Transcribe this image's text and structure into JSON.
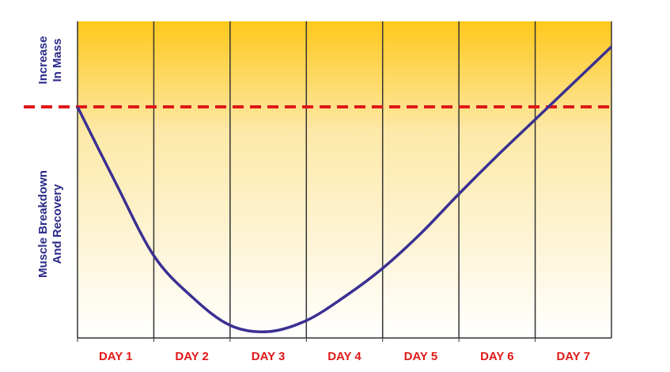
{
  "chart_data": {
    "type": "line",
    "categories": [
      "DAY 1",
      "DAY 2",
      "DAY 3",
      "DAY 4",
      "DAY 5",
      "DAY 6",
      "DAY 7"
    ],
    "category_color": "#e01818",
    "zones": [
      {
        "lines": [
          "Increase",
          "In Mass"
        ]
      },
      {
        "lines": [
          "Muscle Breakdown",
          "And Recovery"
        ]
      }
    ],
    "zone_color": "#2a2a88",
    "xlim": [
      0,
      7
    ],
    "ylim": [
      0,
      100
    ],
    "reference_line": {
      "value": 73,
      "color": "#e01818"
    },
    "series": [
      {
        "color": "#3a3092",
        "x": [
          0,
          0.5,
          1,
          1.5,
          2,
          2.5,
          3,
          3.5,
          4,
          4.5,
          5,
          5.5,
          6,
          6.5,
          7
        ],
        "values": [
          73,
          49,
          26,
          13,
          4,
          2,
          5.5,
          13,
          22,
          33,
          45.5,
          57.5,
          69,
          80.5,
          92
        ]
      }
    ]
  }
}
